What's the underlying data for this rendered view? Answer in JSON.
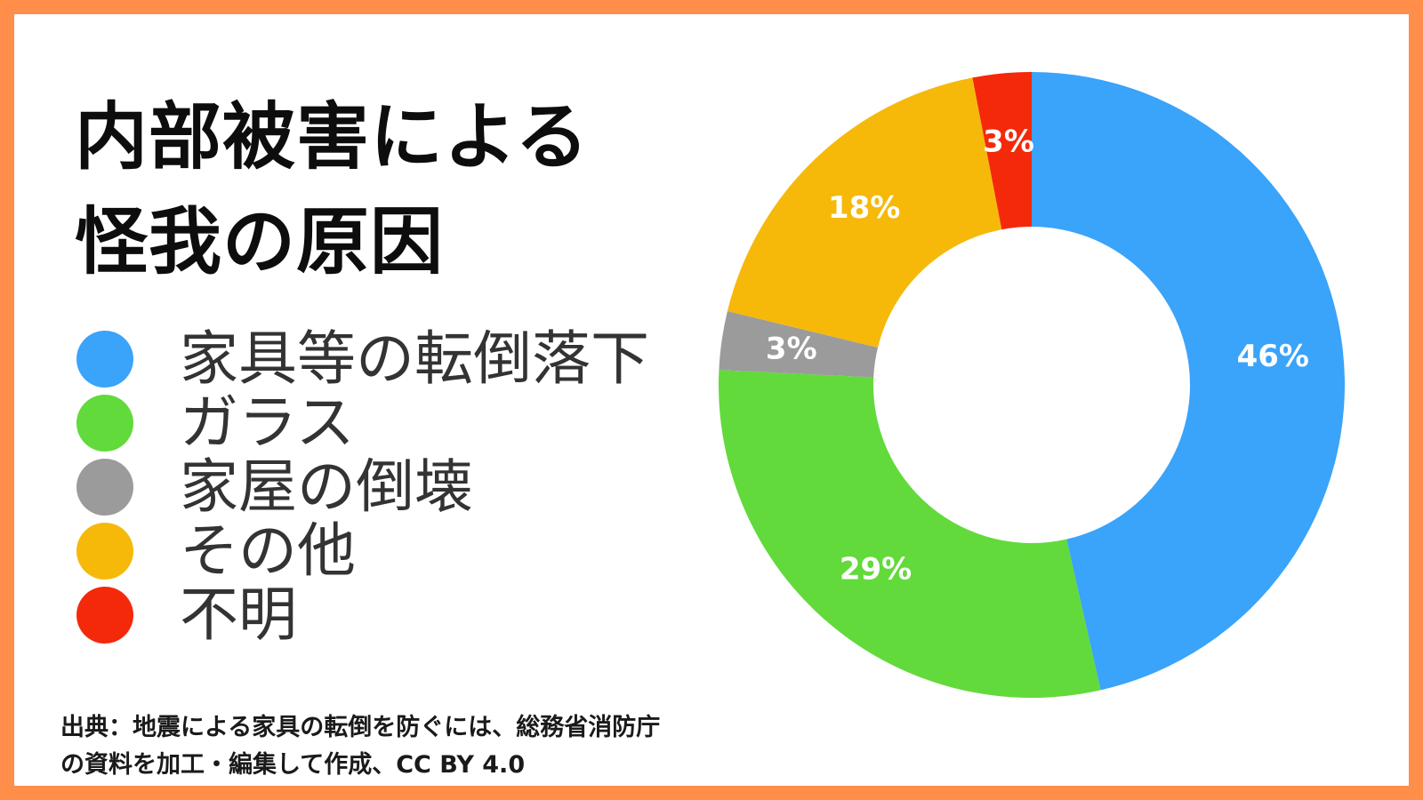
{
  "title": {
    "line1": "内部被害による",
    "line2": "怪我の原因"
  },
  "source": {
    "line1": "出典：地震による家具の転倒を防ぐには、総務省消防庁",
    "line2": "の資料を加工・編集して作成、CC BY 4.0"
  },
  "colors": {
    "border": "#ff8e4a",
    "background": "#ffffff"
  },
  "chart_data": {
    "type": "pie",
    "donut": true,
    "title": "内部被害による怪我の原因",
    "categories": [
      "家具等の転倒落下",
      "ガラス",
      "家屋の倒壊",
      "その他",
      "不明"
    ],
    "values": [
      46,
      29,
      3,
      18,
      3
    ],
    "labels": [
      "46%",
      "29%",
      "3%",
      "18%",
      "3%"
    ],
    "colors": [
      "#3aa3fa",
      "#62da3b",
      "#9b9b9b",
      "#f6b90a",
      "#f4290a"
    ],
    "legend_position": "left"
  }
}
